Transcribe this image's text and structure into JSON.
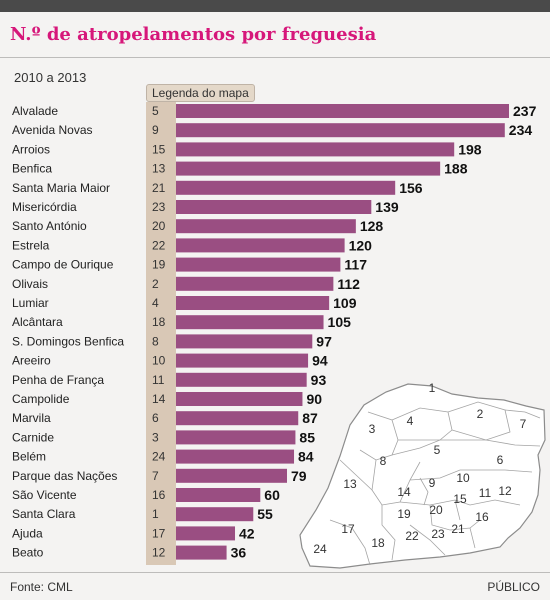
{
  "title": "N.º de atropelamentos por freguesia",
  "subtitle": "2010 a 2013",
  "legend_label": "Legenda do mapa",
  "footer": {
    "source": "Fonte: CML",
    "brand": "PÚBLICO"
  },
  "colors": {
    "bar": "#9a4e82",
    "title": "#d6177a",
    "code_band": "#d9c8b6"
  },
  "chart_data": {
    "type": "bar",
    "orientation": "horizontal",
    "title": "N.º de atropelamentos por freguesia",
    "subtitle": "2010 a 2013",
    "categories": [
      "Alvalade",
      "Avenida Novas",
      "Arroios",
      "Benfica",
      "Santa Maria Maior",
      "Misericórdia",
      "Santo António",
      "Estrela",
      "Campo de Ourique",
      "Olivais",
      "Lumiar",
      "Alcântara",
      "S. Domingos Benfica",
      "Areeiro",
      "Penha de França",
      "Campolide",
      "Marvila",
      "Carnide",
      "Belém",
      "Parque das Nações",
      "São Vicente",
      "Santa Clara",
      "Ajuda",
      "Beato"
    ],
    "map_codes": [
      "5",
      "9",
      "15",
      "13",
      "21",
      "23",
      "20",
      "22",
      "19",
      "2",
      "4",
      "18",
      "8",
      "10",
      "11",
      "14",
      "6",
      "3",
      "24",
      "7",
      "16",
      "1",
      "17",
      "12"
    ],
    "values": [
      237,
      234,
      198,
      188,
      156,
      139,
      128,
      120,
      117,
      112,
      109,
      105,
      97,
      94,
      93,
      90,
      87,
      85,
      84,
      79,
      60,
      55,
      42,
      36
    ],
    "xlim": [
      0,
      237
    ]
  },
  "map": {
    "labels": [
      "1",
      "2",
      "3",
      "4",
      "5",
      "6",
      "7",
      "8",
      "9",
      "10",
      "11",
      "12",
      "13",
      "14",
      "15",
      "16",
      "17",
      "18",
      "19",
      "20",
      "21",
      "22",
      "23",
      "24"
    ]
  }
}
